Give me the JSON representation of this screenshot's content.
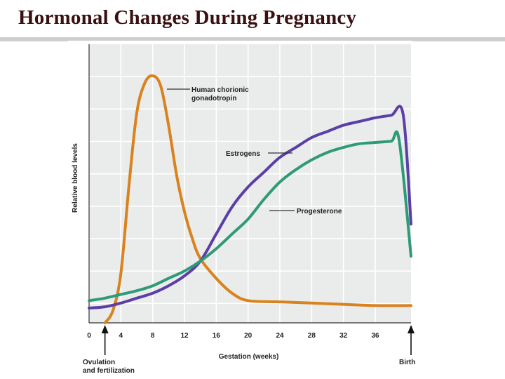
{
  "slide": {
    "title": "Hormonal Changes During Pregnancy"
  },
  "colors": {
    "title": "#3a1010",
    "plot_bg": "#e9ecea",
    "grid": "#ffffff",
    "hcg": "#d9821e",
    "estrogens": "#5b3ea8",
    "progesterone": "#2f9a78",
    "text": "#222222"
  },
  "chart_data": {
    "type": "line",
    "title": "",
    "xlabel": "Gestation (weeks)",
    "ylabel": "Relative blood levels",
    "xlim": [
      0,
      40.5
    ],
    "ylim": [
      0,
      100
    ],
    "xticks": [
      0,
      4,
      8,
      12,
      16,
      20,
      24,
      28,
      32,
      36
    ],
    "grid": true,
    "series": [
      {
        "name": "Human chorionic gonadotropin",
        "label_lines": [
          "Human chorionic",
          "gonadotropin"
        ],
        "color": "#d9821e",
        "x": [
          2,
          3,
          4,
          5,
          6,
          7,
          8,
          9,
          10,
          11,
          12,
          13,
          14,
          16,
          18,
          20,
          24,
          28,
          32,
          36,
          40.5
        ],
        "y": [
          0,
          5,
          20,
          55,
          85,
          97,
          100,
          96,
          80,
          60,
          45,
          34,
          26,
          18,
          12,
          9,
          8.5,
          8,
          7.5,
          7,
          7
        ]
      },
      {
        "name": "Estrogens",
        "label_lines": [
          "Estrogens"
        ],
        "color": "#5b3ea8",
        "x": [
          0,
          2,
          4,
          6,
          8,
          10,
          12,
          14,
          16,
          18,
          20,
          22,
          24,
          26,
          28,
          30,
          32,
          34,
          36,
          38,
          39.5,
          40.5
        ],
        "y": [
          6,
          6.5,
          8,
          10,
          12,
          15,
          19,
          25,
          36,
          47,
          55,
          61,
          67,
          71,
          75,
          77.5,
          80,
          81.5,
          83,
          84,
          84.5,
          40
        ]
      },
      {
        "name": "Progesterone",
        "label_lines": [
          "Progesterone"
        ],
        "color": "#2f9a78",
        "x": [
          0,
          2,
          4,
          6,
          8,
          10,
          12,
          14,
          16,
          18,
          20,
          22,
          24,
          26,
          28,
          30,
          32,
          34,
          36,
          38,
          39,
          40.5
        ],
        "y": [
          9,
          10,
          11.5,
          13,
          15,
          18,
          21,
          25,
          30,
          36,
          42,
          50,
          57,
          62,
          66,
          69,
          71,
          72.5,
          73,
          73.5,
          74,
          27
        ]
      }
    ],
    "annotations": [
      {
        "lines": [
          "Ovulation",
          "and fertilization"
        ],
        "x": 2
      },
      {
        "lines": [
          "Birth"
        ],
        "x": 40.5
      }
    ]
  }
}
